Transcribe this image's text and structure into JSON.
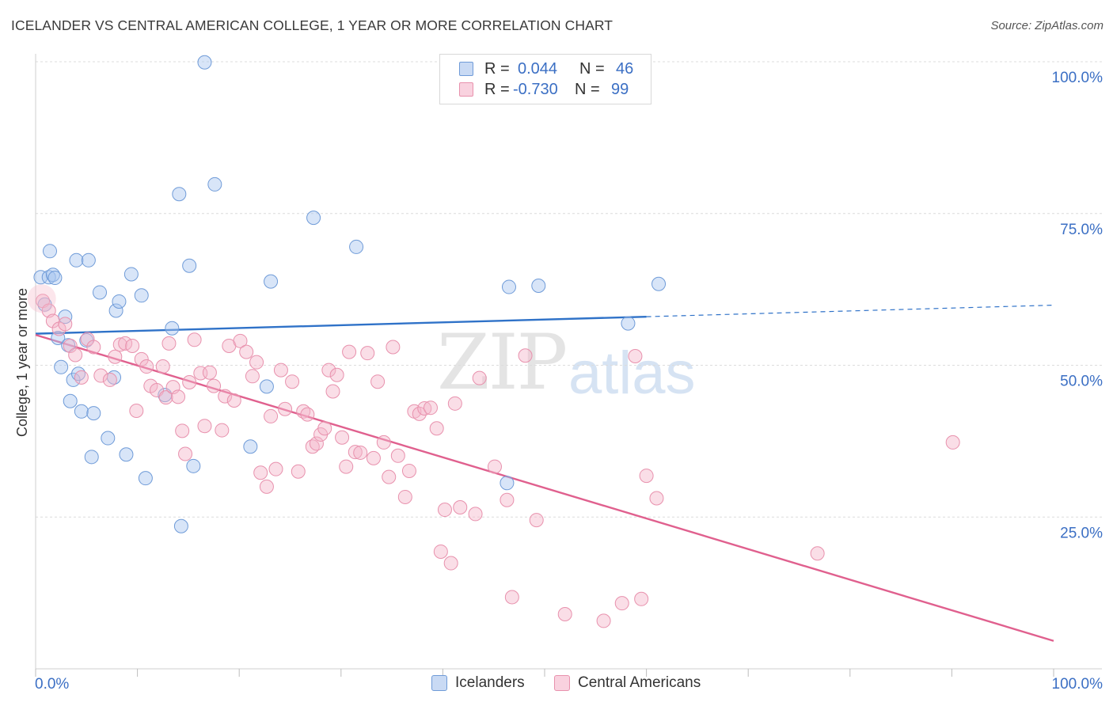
{
  "header": {
    "title": "ICELANDER VS CENTRAL AMERICAN COLLEGE, 1 YEAR OR MORE CORRELATION CHART",
    "source": "Source: ZipAtlas.com"
  },
  "watermark": {
    "zip": "ZIP",
    "atlas": "atlas"
  },
  "legend": {
    "rows": [
      {
        "r_label": "R =",
        "r_value": "0.044",
        "n_label": "N =",
        "n_value": "46",
        "color": "#a9c6ef"
      },
      {
        "r_label": "R =",
        "r_value": "-0.730",
        "n_label": "N =",
        "n_value": "99",
        "color": "#f5b6c9"
      }
    ]
  },
  "bottom_legend": {
    "items": [
      {
        "label": "Icelanders",
        "color": "#a9c6ef"
      },
      {
        "label": "Central Americans",
        "color": "#f5b6c9"
      }
    ]
  },
  "chart_data": {
    "type": "scatter",
    "title": "ICELANDER VS CENTRAL AMERICAN COLLEGE, 1 YEAR OR MORE CORRELATION CHART",
    "xlabel": "",
    "ylabel": "College, 1 year or more",
    "xlim": [
      0,
      100
    ],
    "ylim": [
      0,
      100
    ],
    "x_tick_labels": [
      {
        "value": 0,
        "label": "0.0%"
      },
      {
        "value": 100,
        "label": "100.0%"
      }
    ],
    "y_tick_labels": [
      {
        "value": 100,
        "label": "100.0%"
      },
      {
        "value": 75,
        "label": "75.0%"
      },
      {
        "value": 50,
        "label": "50.0%"
      },
      {
        "value": 25,
        "label": "25.0%"
      }
    ],
    "grid": true,
    "legend_position": "top-center",
    "series": [
      {
        "name": "Icelanders",
        "color": "#a9c6ef",
        "stroke": "#6f9bd8",
        "trend_color": "#2f72c8",
        "trend": {
          "x0": 0,
          "y0": 55.2,
          "x1": 60,
          "y1": 58.0,
          "dash_to_x": 100,
          "dash_to_y": 59.9
        },
        "points": [
          [
            0.5,
            64.5
          ],
          [
            0.9,
            60.0
          ],
          [
            1.3,
            64.5
          ],
          [
            1.4,
            68.8
          ],
          [
            1.7,
            64.9
          ],
          [
            1.9,
            64.4
          ],
          [
            2.2,
            54.5
          ],
          [
            2.5,
            49.7
          ],
          [
            2.9,
            58.0
          ],
          [
            3.2,
            53.3
          ],
          [
            3.4,
            44.1
          ],
          [
            3.7,
            47.6
          ],
          [
            4.0,
            67.3
          ],
          [
            4.2,
            48.6
          ],
          [
            4.5,
            42.4
          ],
          [
            5.0,
            54.1
          ],
          [
            5.2,
            67.3
          ],
          [
            5.5,
            34.9
          ],
          [
            5.7,
            42.1
          ],
          [
            6.3,
            62.0
          ],
          [
            7.1,
            38.0
          ],
          [
            7.7,
            48.0
          ],
          [
            7.9,
            59.0
          ],
          [
            8.2,
            60.5
          ],
          [
            8.9,
            35.3
          ],
          [
            9.4,
            65.0
          ],
          [
            10.4,
            61.5
          ],
          [
            10.8,
            31.4
          ],
          [
            12.7,
            45.1
          ],
          [
            13.4,
            56.1
          ],
          [
            14.1,
            78.2
          ],
          [
            14.3,
            23.5
          ],
          [
            15.1,
            66.4
          ],
          [
            15.5,
            33.4
          ],
          [
            16.6,
            99.9
          ],
          [
            17.6,
            79.8
          ],
          [
            21.1,
            36.6
          ],
          [
            22.7,
            46.5
          ],
          [
            23.1,
            63.8
          ],
          [
            27.3,
            74.3
          ],
          [
            31.5,
            69.5
          ],
          [
            46.3,
            30.6
          ],
          [
            46.5,
            62.9
          ],
          [
            49.4,
            63.1
          ],
          [
            61.2,
            63.4
          ],
          [
            58.2,
            56.9
          ]
        ]
      },
      {
        "name": "Central Americans",
        "color": "#f5b6c9",
        "stroke": "#e891ad",
        "trend_color": "#e0608e",
        "trend": {
          "x0": 0,
          "y0": 55.0,
          "x1": 100,
          "y1": 4.6
        },
        "points": [
          [
            0.7,
            60.6
          ],
          [
            1.3,
            59.0
          ],
          [
            1.7,
            57.3
          ],
          [
            2.3,
            56.0
          ],
          [
            2.9,
            56.8
          ],
          [
            3.4,
            53.2
          ],
          [
            3.9,
            51.7
          ],
          [
            4.5,
            48.0
          ],
          [
            5.1,
            54.3
          ],
          [
            5.7,
            53.0
          ],
          [
            6.4,
            48.3
          ],
          [
            7.3,
            47.6
          ],
          [
            7.8,
            51.4
          ],
          [
            8.3,
            53.4
          ],
          [
            8.8,
            53.6
          ],
          [
            9.5,
            53.2
          ],
          [
            9.9,
            42.5
          ],
          [
            10.4,
            51.0
          ],
          [
            10.9,
            49.8
          ],
          [
            11.3,
            46.6
          ],
          [
            11.9,
            45.9
          ],
          [
            12.5,
            49.8
          ],
          [
            12.8,
            44.7
          ],
          [
            13.1,
            53.6
          ],
          [
            13.5,
            46.4
          ],
          [
            14.0,
            44.8
          ],
          [
            14.4,
            39.2
          ],
          [
            14.7,
            35.4
          ],
          [
            15.1,
            47.2
          ],
          [
            15.6,
            54.2
          ],
          [
            16.2,
            48.7
          ],
          [
            16.6,
            40.0
          ],
          [
            17.1,
            48.8
          ],
          [
            17.5,
            46.6
          ],
          [
            18.3,
            39.3
          ],
          [
            18.6,
            44.9
          ],
          [
            19.0,
            53.2
          ],
          [
            19.5,
            44.2
          ],
          [
            20.1,
            54.0
          ],
          [
            20.7,
            52.2
          ],
          [
            21.3,
            48.2
          ],
          [
            21.7,
            50.5
          ],
          [
            22.1,
            32.3
          ],
          [
            22.7,
            30.0
          ],
          [
            23.1,
            41.6
          ],
          [
            23.6,
            32.9
          ],
          [
            24.1,
            49.2
          ],
          [
            24.5,
            42.8
          ],
          [
            25.2,
            47.3
          ],
          [
            25.8,
            32.5
          ],
          [
            26.3,
            42.4
          ],
          [
            26.7,
            41.9
          ],
          [
            27.2,
            36.6
          ],
          [
            27.6,
            37.1
          ],
          [
            28.0,
            38.6
          ],
          [
            28.4,
            39.6
          ],
          [
            28.8,
            49.2
          ],
          [
            29.2,
            45.7
          ],
          [
            29.6,
            48.4
          ],
          [
            30.1,
            38.1
          ],
          [
            30.5,
            33.3
          ],
          [
            30.8,
            52.2
          ],
          [
            31.4,
            35.7
          ],
          [
            31.9,
            35.6
          ],
          [
            32.6,
            52.0
          ],
          [
            33.2,
            34.7
          ],
          [
            33.6,
            47.3
          ],
          [
            34.2,
            37.3
          ],
          [
            34.7,
            31.6
          ],
          [
            35.1,
            53.0
          ],
          [
            35.6,
            35.1
          ],
          [
            36.3,
            28.3
          ],
          [
            36.7,
            32.6
          ],
          [
            37.2,
            42.4
          ],
          [
            37.7,
            42.0
          ],
          [
            38.2,
            42.9
          ],
          [
            38.8,
            43.0
          ],
          [
            39.4,
            39.6
          ],
          [
            39.8,
            19.3
          ],
          [
            40.2,
            26.2
          ],
          [
            40.8,
            17.4
          ],
          [
            41.2,
            43.7
          ],
          [
            41.7,
            26.6
          ],
          [
            43.2,
            25.5
          ],
          [
            43.6,
            47.9
          ],
          [
            45.1,
            33.3
          ],
          [
            46.3,
            27.8
          ],
          [
            46.8,
            11.8
          ],
          [
            48.1,
            51.6
          ],
          [
            49.2,
            24.5
          ],
          [
            52.0,
            9.0
          ],
          [
            55.8,
            7.9
          ],
          [
            57.6,
            10.8
          ],
          [
            59.5,
            11.5
          ],
          [
            60.0,
            31.8
          ],
          [
            61.0,
            28.1
          ],
          [
            76.8,
            19.0
          ],
          [
            90.1,
            37.3
          ],
          [
            58.9,
            51.5
          ]
        ]
      }
    ]
  }
}
